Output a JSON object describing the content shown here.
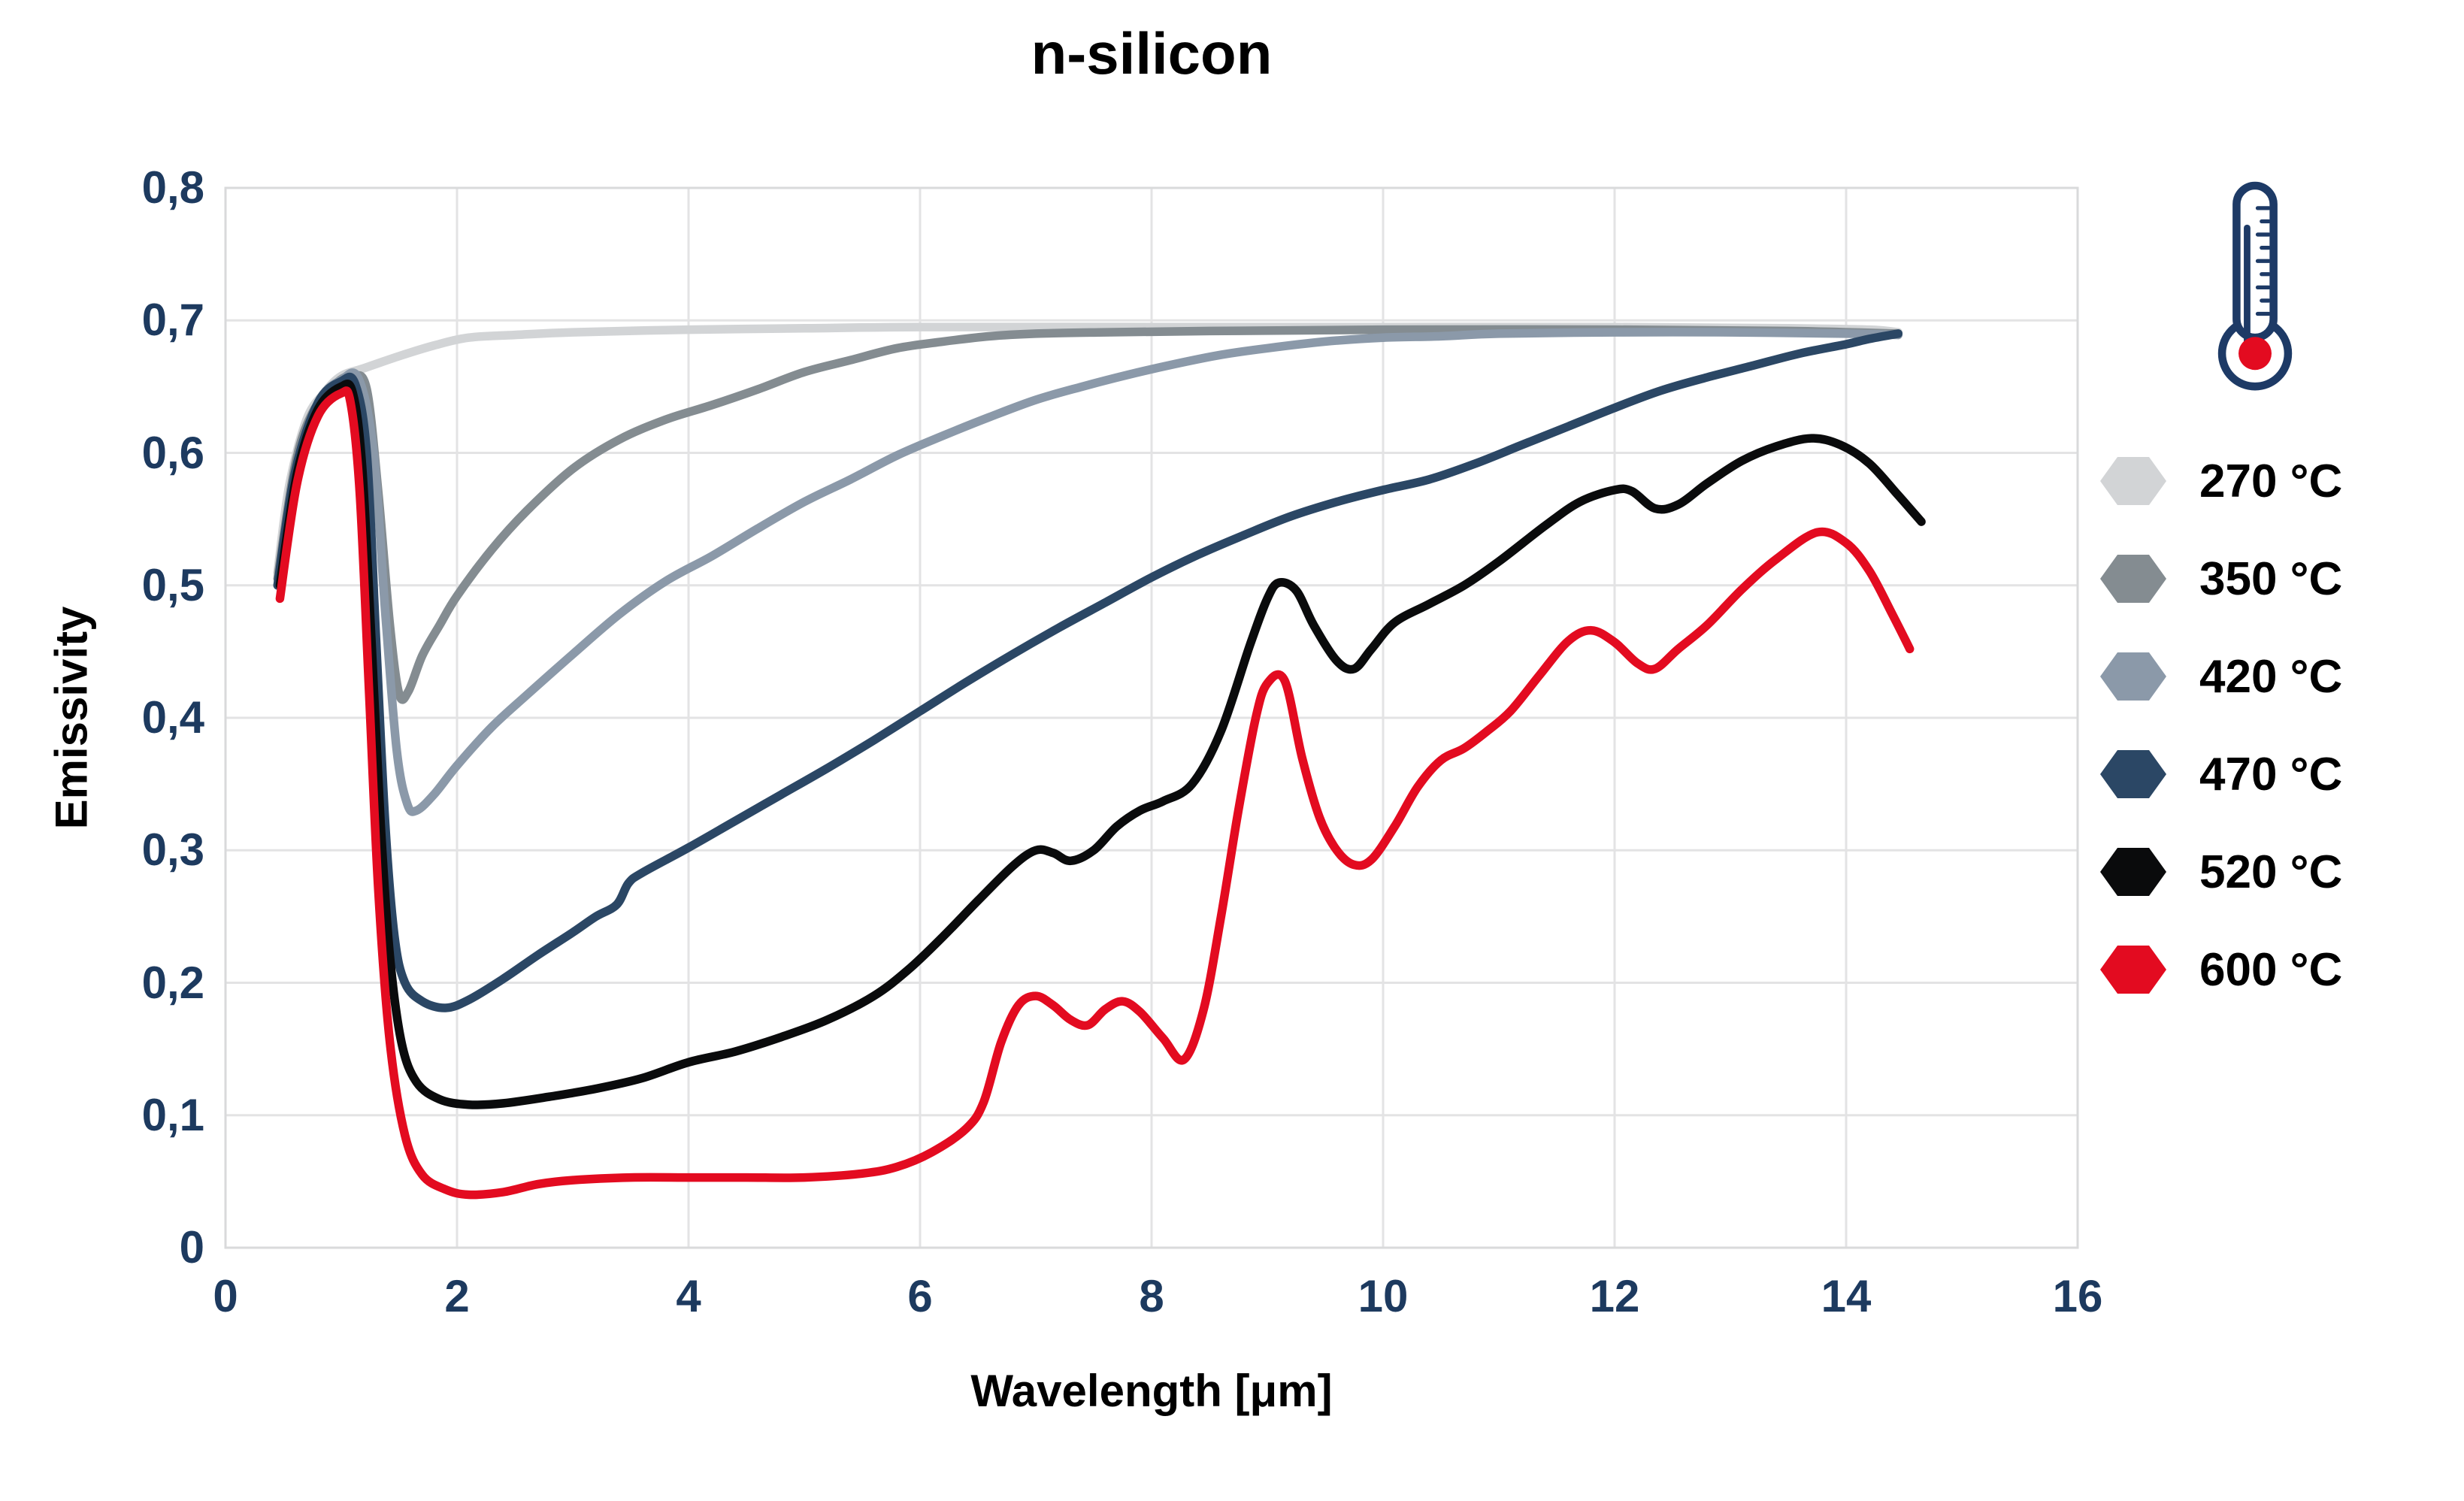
{
  "title": "n-silicon",
  "y_axis": {
    "label": "Emissivity",
    "ticks": [
      "0,8",
      "0,7",
      "0,6",
      "0,5",
      "0,4",
      "0,3",
      "0,2",
      "0,1",
      "0"
    ],
    "tick_values": [
      0.8,
      0.7,
      0.6,
      0.5,
      0.4,
      0.3,
      0.2,
      0.1,
      0
    ]
  },
  "x_axis": {
    "label": "Wavelength [μm]",
    "ticks": [
      "0",
      "2",
      "4",
      "6",
      "8",
      "10",
      "12",
      "14",
      "16"
    ],
    "tick_values": [
      0,
      2,
      4,
      6,
      8,
      10,
      12,
      14,
      16
    ]
  },
  "legend": {
    "icon": "thermometer-icon",
    "items": [
      {
        "label": "270 °C",
        "color": "#d2d4d6"
      },
      {
        "label": "350 °C",
        "color": "#848c91"
      },
      {
        "label": "420 °C",
        "color": "#8b99a9"
      },
      {
        "label": "470 °C",
        "color": "#2b4765"
      },
      {
        "label": "520 °C",
        "color": "#0a0b0c"
      },
      {
        "label": "600 °C",
        "color": "#e30b20"
      }
    ]
  },
  "colors": {
    "tick_text": "#1d3a5f",
    "grid": "#e3e3e4",
    "plot_border": "#d9dadb",
    "thermometer_outline": "#1d3a66",
    "thermometer_bulb": "#e30b20"
  },
  "chart_data": {
    "type": "line",
    "title": "n-silicon",
    "xlabel": "Wavelength [μm]",
    "ylabel": "Emissivity",
    "xlim": [
      0,
      16
    ],
    "ylim": [
      0,
      0.8
    ],
    "grid": true,
    "legend_position": "right",
    "series": [
      {
        "name": "270 °C",
        "color": "#d2d4d6",
        "points": [
          [
            0.45,
            0.51
          ],
          [
            0.55,
            0.575
          ],
          [
            0.7,
            0.625
          ],
          [
            0.85,
            0.645
          ],
          [
            1.0,
            0.658
          ],
          [
            1.2,
            0.664
          ],
          [
            1.5,
            0.673
          ],
          [
            1.8,
            0.681
          ],
          [
            2.1,
            0.687
          ],
          [
            2.5,
            0.689
          ],
          [
            3.0,
            0.691
          ],
          [
            4.0,
            0.693
          ],
          [
            5.0,
            0.694
          ],
          [
            6.0,
            0.695
          ],
          [
            8.0,
            0.695
          ],
          [
            10.0,
            0.695
          ],
          [
            12.0,
            0.695
          ],
          [
            13.5,
            0.694
          ],
          [
            14.2,
            0.693
          ],
          [
            14.45,
            0.691
          ]
        ]
      },
      {
        "name": "350 °C",
        "color": "#848c91",
        "points": [
          [
            0.45,
            0.505
          ],
          [
            0.6,
            0.59
          ],
          [
            0.75,
            0.63
          ],
          [
            0.95,
            0.652
          ],
          [
            1.1,
            0.658
          ],
          [
            1.22,
            0.648
          ],
          [
            1.32,
            0.57
          ],
          [
            1.42,
            0.47
          ],
          [
            1.5,
            0.418
          ],
          [
            1.58,
            0.42
          ],
          [
            1.7,
            0.447
          ],
          [
            1.85,
            0.47
          ],
          [
            2.0,
            0.492
          ],
          [
            2.3,
            0.527
          ],
          [
            2.6,
            0.556
          ],
          [
            3.0,
            0.588
          ],
          [
            3.4,
            0.61
          ],
          [
            3.8,
            0.625
          ],
          [
            4.2,
            0.636
          ],
          [
            4.6,
            0.648
          ],
          [
            5.0,
            0.661
          ],
          [
            5.4,
            0.67
          ],
          [
            5.8,
            0.679
          ],
          [
            6.2,
            0.684
          ],
          [
            6.6,
            0.688
          ],
          [
            7.0,
            0.69
          ],
          [
            7.6,
            0.691
          ],
          [
            8.5,
            0.692
          ],
          [
            10.0,
            0.693
          ],
          [
            12.0,
            0.693
          ],
          [
            13.5,
            0.692
          ],
          [
            14.45,
            0.69
          ]
        ]
      },
      {
        "name": "420 °C",
        "color": "#8b99a9",
        "points": [
          [
            0.45,
            0.5
          ],
          [
            0.6,
            0.585
          ],
          [
            0.8,
            0.638
          ],
          [
            1.0,
            0.655
          ],
          [
            1.15,
            0.656
          ],
          [
            1.28,
            0.6
          ],
          [
            1.38,
            0.48
          ],
          [
            1.48,
            0.375
          ],
          [
            1.57,
            0.335
          ],
          [
            1.65,
            0.33
          ],
          [
            1.8,
            0.342
          ],
          [
            2.0,
            0.364
          ],
          [
            2.3,
            0.393
          ],
          [
            2.6,
            0.417
          ],
          [
            3.0,
            0.448
          ],
          [
            3.4,
            0.478
          ],
          [
            3.8,
            0.503
          ],
          [
            4.2,
            0.522
          ],
          [
            4.6,
            0.543
          ],
          [
            5.0,
            0.563
          ],
          [
            5.4,
            0.58
          ],
          [
            5.8,
            0.598
          ],
          [
            6.2,
            0.613
          ],
          [
            6.6,
            0.627
          ],
          [
            7.0,
            0.64
          ],
          [
            7.4,
            0.65
          ],
          [
            7.8,
            0.659
          ],
          [
            8.2,
            0.667
          ],
          [
            8.6,
            0.674
          ],
          [
            9.0,
            0.679
          ],
          [
            9.5,
            0.684
          ],
          [
            10.0,
            0.687
          ],
          [
            10.5,
            0.688
          ],
          [
            11.0,
            0.69
          ],
          [
            12.0,
            0.691
          ],
          [
            13.0,
            0.691
          ],
          [
            14.0,
            0.69
          ],
          [
            14.45,
            0.689
          ]
        ]
      },
      {
        "name": "470 °C",
        "color": "#2b4765",
        "points": [
          [
            0.45,
            0.5
          ],
          [
            0.6,
            0.585
          ],
          [
            0.8,
            0.638
          ],
          [
            1.0,
            0.654
          ],
          [
            1.12,
            0.652
          ],
          [
            1.22,
            0.6
          ],
          [
            1.3,
            0.46
          ],
          [
            1.38,
            0.32
          ],
          [
            1.46,
            0.235
          ],
          [
            1.55,
            0.2
          ],
          [
            1.7,
            0.186
          ],
          [
            1.9,
            0.181
          ],
          [
            2.1,
            0.187
          ],
          [
            2.4,
            0.203
          ],
          [
            2.7,
            0.221
          ],
          [
            3.0,
            0.238
          ],
          [
            3.2,
            0.25
          ],
          [
            3.38,
            0.259
          ],
          [
            3.48,
            0.275
          ],
          [
            3.6,
            0.283
          ],
          [
            4.0,
            0.302
          ],
          [
            4.4,
            0.322
          ],
          [
            4.8,
            0.342
          ],
          [
            5.2,
            0.362
          ],
          [
            5.6,
            0.383
          ],
          [
            6.0,
            0.405
          ],
          [
            6.4,
            0.427
          ],
          [
            6.8,
            0.448
          ],
          [
            7.2,
            0.468
          ],
          [
            7.6,
            0.487
          ],
          [
            8.0,
            0.506
          ],
          [
            8.4,
            0.523
          ],
          [
            8.8,
            0.538
          ],
          [
            9.2,
            0.552
          ],
          [
            9.6,
            0.563
          ],
          [
            10.0,
            0.572
          ],
          [
            10.4,
            0.58
          ],
          [
            10.8,
            0.592
          ],
          [
            11.2,
            0.606
          ],
          [
            11.6,
            0.62
          ],
          [
            12.0,
            0.634
          ],
          [
            12.4,
            0.647
          ],
          [
            12.8,
            0.657
          ],
          [
            13.2,
            0.666
          ],
          [
            13.6,
            0.675
          ],
          [
            14.0,
            0.682
          ],
          [
            14.2,
            0.686
          ],
          [
            14.45,
            0.69
          ]
        ]
      },
      {
        "name": "520 °C",
        "color": "#0a0b0c",
        "points": [
          [
            0.47,
            0.5
          ],
          [
            0.62,
            0.585
          ],
          [
            0.8,
            0.633
          ],
          [
            1.0,
            0.65
          ],
          [
            1.1,
            0.645
          ],
          [
            1.18,
            0.59
          ],
          [
            1.26,
            0.46
          ],
          [
            1.34,
            0.32
          ],
          [
            1.42,
            0.22
          ],
          [
            1.52,
            0.155
          ],
          [
            1.65,
            0.125
          ],
          [
            1.85,
            0.112
          ],
          [
            2.1,
            0.108
          ],
          [
            2.4,
            0.109
          ],
          [
            2.8,
            0.114
          ],
          [
            3.2,
            0.12
          ],
          [
            3.6,
            0.128
          ],
          [
            4.0,
            0.14
          ],
          [
            4.4,
            0.148
          ],
          [
            4.8,
            0.159
          ],
          [
            5.2,
            0.172
          ],
          [
            5.6,
            0.19
          ],
          [
            5.9,
            0.21
          ],
          [
            6.2,
            0.235
          ],
          [
            6.5,
            0.262
          ],
          [
            6.8,
            0.288
          ],
          [
            7.0,
            0.3
          ],
          [
            7.15,
            0.298
          ],
          [
            7.3,
            0.292
          ],
          [
            7.5,
            0.3
          ],
          [
            7.7,
            0.318
          ],
          [
            7.9,
            0.33
          ],
          [
            8.1,
            0.337
          ],
          [
            8.35,
            0.35
          ],
          [
            8.6,
            0.39
          ],
          [
            8.85,
            0.455
          ],
          [
            9.0,
            0.49
          ],
          [
            9.1,
            0.502
          ],
          [
            9.25,
            0.496
          ],
          [
            9.4,
            0.47
          ],
          [
            9.6,
            0.443
          ],
          [
            9.75,
            0.437
          ],
          [
            9.9,
            0.452
          ],
          [
            10.1,
            0.472
          ],
          [
            10.4,
            0.486
          ],
          [
            10.7,
            0.5
          ],
          [
            11.0,
            0.518
          ],
          [
            11.4,
            0.545
          ],
          [
            11.7,
            0.563
          ],
          [
            12.0,
            0.572
          ],
          [
            12.15,
            0.571
          ],
          [
            12.35,
            0.558
          ],
          [
            12.55,
            0.561
          ],
          [
            12.8,
            0.577
          ],
          [
            13.1,
            0.594
          ],
          [
            13.4,
            0.605
          ],
          [
            13.7,
            0.611
          ],
          [
            13.95,
            0.606
          ],
          [
            14.2,
            0.592
          ],
          [
            14.45,
            0.568
          ],
          [
            14.65,
            0.548
          ]
        ]
      },
      {
        "name": "600 °C",
        "color": "#e30b20",
        "points": [
          [
            0.47,
            0.49
          ],
          [
            0.62,
            0.578
          ],
          [
            0.8,
            0.628
          ],
          [
            1.0,
            0.645
          ],
          [
            1.08,
            0.638
          ],
          [
            1.16,
            0.57
          ],
          [
            1.24,
            0.42
          ],
          [
            1.32,
            0.27
          ],
          [
            1.42,
            0.155
          ],
          [
            1.55,
            0.085
          ],
          [
            1.7,
            0.055
          ],
          [
            1.9,
            0.044
          ],
          [
            2.1,
            0.04
          ],
          [
            2.4,
            0.042
          ],
          [
            2.7,
            0.048
          ],
          [
            3.0,
            0.051
          ],
          [
            3.5,
            0.053
          ],
          [
            4.0,
            0.053
          ],
          [
            4.5,
            0.053
          ],
          [
            5.0,
            0.053
          ],
          [
            5.5,
            0.056
          ],
          [
            5.8,
            0.061
          ],
          [
            6.1,
            0.072
          ],
          [
            6.4,
            0.09
          ],
          [
            6.55,
            0.11
          ],
          [
            6.7,
            0.155
          ],
          [
            6.85,
            0.183
          ],
          [
            7.0,
            0.19
          ],
          [
            7.15,
            0.183
          ],
          [
            7.3,
            0.172
          ],
          [
            7.45,
            0.168
          ],
          [
            7.6,
            0.18
          ],
          [
            7.75,
            0.186
          ],
          [
            7.9,
            0.178
          ],
          [
            8.1,
            0.158
          ],
          [
            8.28,
            0.142
          ],
          [
            8.45,
            0.18
          ],
          [
            8.6,
            0.25
          ],
          [
            8.75,
            0.33
          ],
          [
            8.9,
            0.4
          ],
          [
            9.0,
            0.426
          ],
          [
            9.15,
            0.428
          ],
          [
            9.3,
            0.37
          ],
          [
            9.45,
            0.325
          ],
          [
            9.6,
            0.3
          ],
          [
            9.75,
            0.289
          ],
          [
            9.9,
            0.293
          ],
          [
            10.1,
            0.318
          ],
          [
            10.3,
            0.348
          ],
          [
            10.5,
            0.368
          ],
          [
            10.7,
            0.377
          ],
          [
            10.9,
            0.39
          ],
          [
            11.1,
            0.405
          ],
          [
            11.35,
            0.432
          ],
          [
            11.6,
            0.458
          ],
          [
            11.8,
            0.466
          ],
          [
            12.0,
            0.457
          ],
          [
            12.2,
            0.441
          ],
          [
            12.35,
            0.437
          ],
          [
            12.55,
            0.452
          ],
          [
            12.8,
            0.47
          ],
          [
            13.1,
            0.497
          ],
          [
            13.4,
            0.52
          ],
          [
            13.75,
            0.54
          ],
          [
            14.0,
            0.532
          ],
          [
            14.2,
            0.511
          ],
          [
            14.4,
            0.478
          ],
          [
            14.55,
            0.452
          ]
        ]
      }
    ]
  }
}
